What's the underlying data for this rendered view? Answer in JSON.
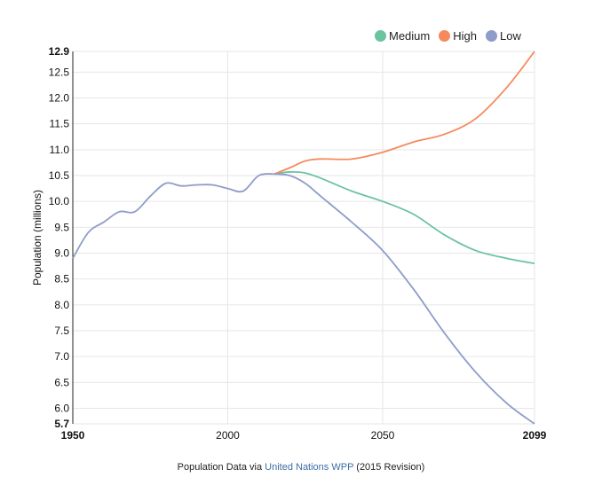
{
  "colors": {
    "medium": "#6cc3a0",
    "high": "#f58a5e",
    "low": "#8f9cc9"
  },
  "legend": [
    {
      "label": "Medium",
      "color": "#6cc3a0"
    },
    {
      "label": "High",
      "color": "#f58a5e"
    },
    {
      "label": "Low",
      "color": "#8f9cc9"
    }
  ],
  "footer": {
    "prefix": "Population Data via",
    "link_text": "United Nations WPP",
    "suffix": "(2015 Revision)"
  },
  "chart_data": {
    "type": "line",
    "title": "",
    "xlabel": "",
    "ylabel": "Population (millions)",
    "xlim": [
      1950,
      2099
    ],
    "ylim": [
      5.7,
      12.9
    ],
    "x_ticks": [
      1950,
      2000,
      2050,
      2099
    ],
    "x_ticks_bold": [
      1950,
      2099
    ],
    "y_ticks": [
      5.7,
      6.0,
      6.5,
      7.0,
      7.5,
      8.0,
      8.5,
      9.0,
      9.5,
      10.0,
      10.5,
      11.0,
      11.5,
      12.0,
      12.5,
      12.9
    ],
    "y_ticks_bold": [
      5.7,
      12.9
    ],
    "grid": true,
    "legend_position": "top-right",
    "historical": {
      "x": [
        1950,
        1955,
        1960,
        1965,
        1970,
        1975,
        1980,
        1985,
        1990,
        1995,
        2000,
        2005,
        2010,
        2015
      ],
      "y": [
        8.9,
        9.4,
        9.6,
        9.8,
        9.8,
        10.1,
        10.35,
        10.3,
        10.32,
        10.32,
        10.25,
        10.2,
        10.5,
        10.53
      ]
    },
    "series": [
      {
        "name": "Medium",
        "x": [
          2015,
          2020,
          2025,
          2030,
          2040,
          2050,
          2060,
          2070,
          2080,
          2090,
          2099
        ],
        "y": [
          10.53,
          10.57,
          10.55,
          10.45,
          10.2,
          10.0,
          9.75,
          9.35,
          9.05,
          8.9,
          8.8
        ]
      },
      {
        "name": "High",
        "x": [
          2015,
          2020,
          2025,
          2030,
          2040,
          2050,
          2060,
          2070,
          2080,
          2090,
          2099
        ],
        "y": [
          10.53,
          10.65,
          10.78,
          10.82,
          10.82,
          10.95,
          11.15,
          11.3,
          11.6,
          12.2,
          12.9
        ]
      },
      {
        "name": "Low",
        "x": [
          2015,
          2020,
          2025,
          2030,
          2040,
          2050,
          2060,
          2070,
          2080,
          2090,
          2099
        ],
        "y": [
          10.53,
          10.5,
          10.35,
          10.1,
          9.6,
          9.05,
          8.3,
          7.45,
          6.7,
          6.1,
          5.7
        ]
      }
    ]
  }
}
